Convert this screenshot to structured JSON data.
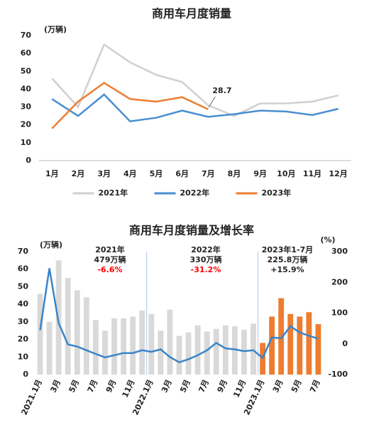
{
  "chart_data": [
    {
      "type": "line",
      "title": "商用车月度销量",
      "ylabel": "(万辆)",
      "categories": [
        "1月",
        "2月",
        "3月",
        "4月",
        "5月",
        "6月",
        "7月",
        "8月",
        "9月",
        "10月",
        "11月",
        "12月"
      ],
      "series": [
        {
          "name": "2021年",
          "color": "#d0d0d0",
          "values": [
            46,
            30,
            65,
            55,
            48,
            44,
            31,
            25,
            32,
            32,
            33,
            36.5
          ]
        },
        {
          "name": "2022年",
          "color": "#4a8ed0",
          "values": [
            34.5,
            25,
            37,
            22,
            24,
            28,
            24.5,
            26,
            28,
            27.5,
            25.5,
            29
          ]
        },
        {
          "name": "2023年",
          "color": "#ed7d31",
          "values": [
            18,
            33,
            43.5,
            34.5,
            33,
            35.5,
            28.7,
            null,
            null,
            null,
            null,
            null
          ]
        }
      ],
      "annotation": "28.7",
      "ylim": [
        0,
        70
      ],
      "yticks": [
        0,
        10,
        20,
        30,
        40,
        50,
        60,
        70
      ],
      "legend": "bottom"
    },
    {
      "type": "combo",
      "title": "商用车月度销量及增长率",
      "ylabel": "(万辆)",
      "y2label": "(%)",
      "categories": [
        "2021.1月",
        null,
        "3月",
        null,
        "5月",
        null,
        "7月",
        null,
        "9月",
        null,
        "11月",
        null,
        "2022.1月",
        null,
        "3月",
        null,
        "5月",
        null,
        "7月",
        null,
        "9月",
        null,
        "11月",
        null,
        "2023.1月",
        null,
        "3月",
        null,
        "5月",
        null,
        "7月"
      ],
      "series": [
        {
          "type": "bar",
          "values": [
            46,
            30,
            65,
            55,
            48,
            44,
            31,
            25,
            32,
            32,
            33,
            36.5,
            34.5,
            25,
            37,
            22,
            24,
            28,
            24.5,
            26,
            28,
            27.5,
            25.5,
            29,
            18,
            33,
            43.5,
            34.5,
            33,
            35.5,
            28.7
          ],
          "colors": [
            "#d9d9d9",
            "#d9d9d9",
            "#d9d9d9",
            "#d9d9d9",
            "#d9d9d9",
            "#d9d9d9",
            "#d9d9d9",
            "#d9d9d9",
            "#d9d9d9",
            "#d9d9d9",
            "#d9d9d9",
            "#d9d9d9",
            "#d9d9d9",
            "#d9d9d9",
            "#d9d9d9",
            "#d9d9d9",
            "#d9d9d9",
            "#d9d9d9",
            "#d9d9d9",
            "#d9d9d9",
            "#d9d9d9",
            "#d9d9d9",
            "#d9d9d9",
            "#d9d9d9",
            "#ed7d31",
            "#ed7d31",
            "#ed7d31",
            "#ed7d31",
            "#ed7d31",
            "#ed7d31",
            "#ed7d31"
          ]
        },
        {
          "type": "line",
          "axis": "y2",
          "color": "#3a84c8",
          "values": [
            44,
            246,
            67,
            -2,
            -9,
            -21,
            -33,
            -44,
            -37,
            -30,
            -30,
            -21,
            -26,
            -18,
            -43,
            -60,
            -50,
            -37,
            -21,
            3,
            -15,
            -18,
            -24,
            -21,
            -46,
            21,
            18,
            57,
            37,
            26,
            17
          ]
        }
      ],
      "annotations": [
        {
          "lines": [
            "2021年",
            "479万辆"
          ],
          "change": "-6.6%",
          "change_color": "#ff0000"
        },
        {
          "lines": [
            "2022年",
            "330万辆"
          ],
          "change": "-31.2%",
          "change_color": "#ff0000"
        },
        {
          "lines": [
            "2023年1-7月",
            "225.8万辆"
          ],
          "change": "+15.9%",
          "change_color": "#222222"
        }
      ],
      "ylim": [
        0,
        70
      ],
      "yticks": [
        0,
        10,
        20,
        30,
        40,
        50,
        60,
        70
      ],
      "y2lim": [
        -100,
        300
      ],
      "y2ticks": [
        -100,
        0,
        100,
        200,
        300
      ]
    }
  ]
}
